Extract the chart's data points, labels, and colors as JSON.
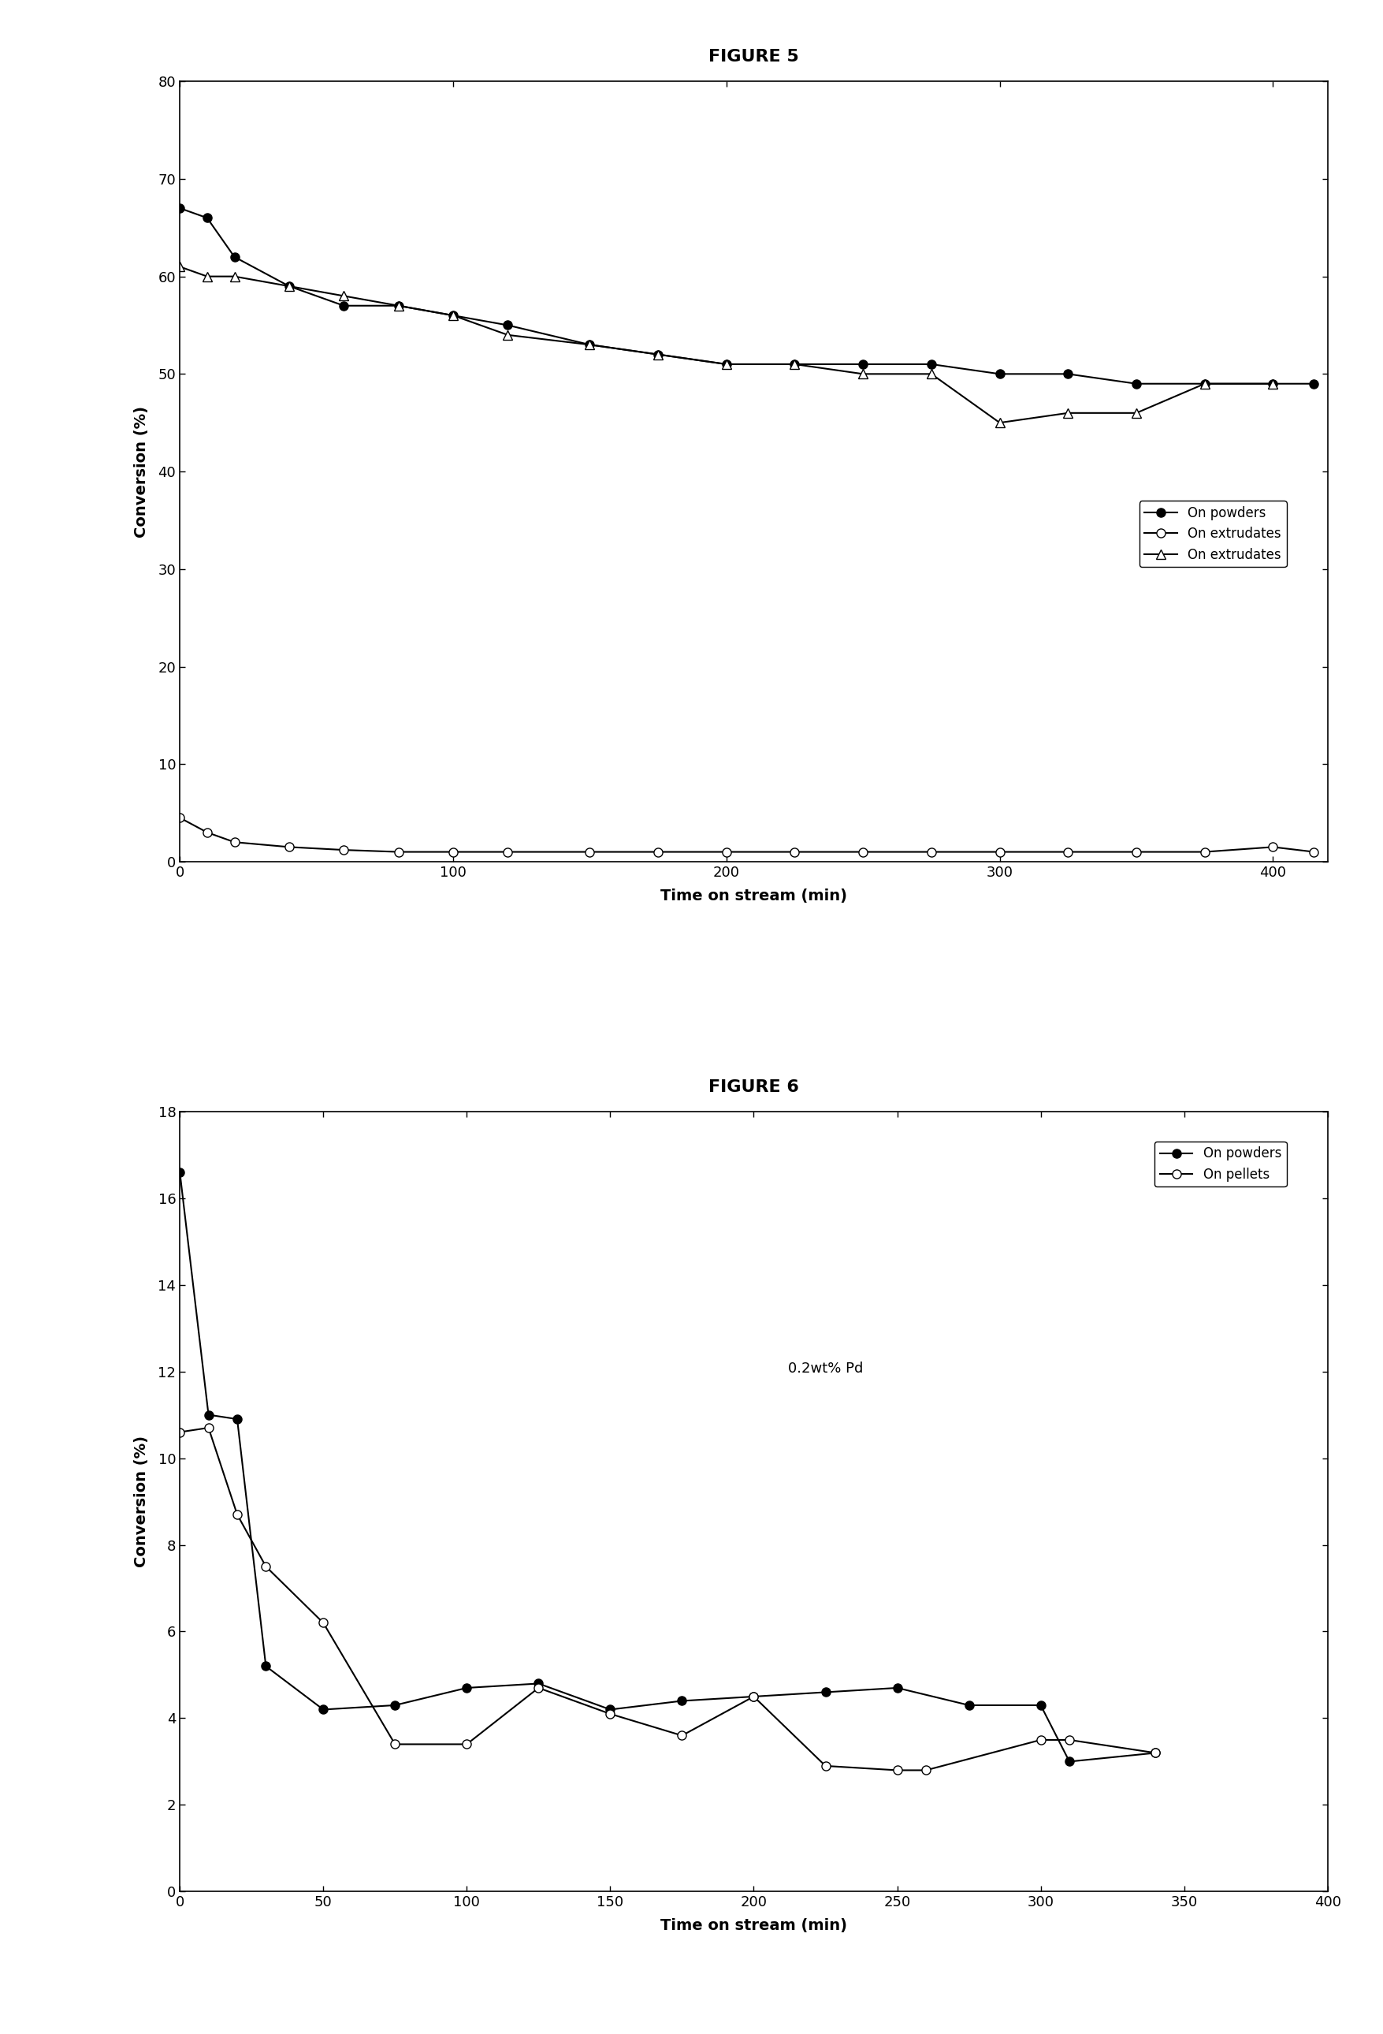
{
  "fig5": {
    "powders_x": [
      0,
      10,
      20,
      40,
      60,
      80,
      100,
      120,
      150,
      175,
      200,
      225,
      250,
      275,
      300,
      325,
      350,
      375,
      400,
      415
    ],
    "powders_y": [
      67,
      66,
      62,
      59,
      57,
      57,
      56,
      55,
      53,
      52,
      51,
      51,
      51,
      51,
      50,
      50,
      49,
      49,
      49,
      49
    ],
    "extrudates_open_x": [
      0,
      10,
      20,
      40,
      60,
      80,
      100,
      120,
      150,
      175,
      200,
      225,
      250,
      275,
      300,
      325,
      350,
      375,
      400,
      415
    ],
    "extrudates_open_y": [
      4.5,
      3.0,
      2.0,
      1.5,
      1.2,
      1.0,
      1.0,
      1.0,
      1.0,
      1.0,
      1.0,
      1.0,
      1.0,
      1.0,
      1.0,
      1.0,
      1.0,
      1.0,
      1.5,
      1.0
    ],
    "extrudates_tri_x": [
      0,
      10,
      20,
      40,
      60,
      80,
      100,
      120,
      150,
      175,
      200,
      225,
      250,
      275,
      300,
      325,
      350,
      375,
      400
    ],
    "extrudates_tri_y": [
      61,
      60,
      60,
      59,
      58,
      57,
      56,
      54,
      53,
      52,
      51,
      51,
      50,
      50,
      45,
      46,
      46,
      49,
      49
    ],
    "xlabel": "Time on stream (min)",
    "ylabel": "Conversion (%)",
    "xlim": [
      0,
      420
    ],
    "ylim": [
      0,
      80
    ],
    "xticks": [
      0,
      100,
      200,
      300,
      400
    ],
    "yticks": [
      0,
      10,
      20,
      30,
      40,
      50,
      60,
      70,
      80
    ],
    "legend_labels": [
      "On powders",
      "On extrudates",
      "On extrudates"
    ],
    "figure_label": "FIGURE 5"
  },
  "fig6": {
    "powders_x": [
      0,
      10,
      20,
      30,
      50,
      75,
      100,
      125,
      150,
      175,
      200,
      225,
      250,
      275,
      300,
      310,
      340
    ],
    "powders_y": [
      16.6,
      11.0,
      10.9,
      5.2,
      4.2,
      4.3,
      4.7,
      4.8,
      4.2,
      4.4,
      4.5,
      4.6,
      4.7,
      4.3,
      4.3,
      3.0,
      3.2
    ],
    "pellets_x": [
      0,
      10,
      20,
      30,
      50,
      75,
      100,
      125,
      150,
      175,
      200,
      225,
      250,
      260,
      300,
      310,
      340
    ],
    "pellets_y": [
      10.6,
      10.7,
      8.7,
      7.5,
      6.2,
      3.4,
      3.4,
      4.7,
      4.1,
      3.6,
      4.5,
      2.9,
      2.8,
      2.8,
      3.5,
      3.5,
      3.2
    ],
    "xlabel": "Time on stream (min)",
    "ylabel": "Conversion (%)",
    "xlim": [
      0,
      400
    ],
    "ylim": [
      0.0,
      18.0
    ],
    "xticks": [
      0,
      50,
      100,
      150,
      200,
      250,
      300,
      350,
      400
    ],
    "yticks": [
      0.0,
      2.0,
      4.0,
      6.0,
      8.0,
      10.0,
      12.0,
      14.0,
      16.0,
      18.0
    ],
    "legend_labels": [
      "On powders",
      "On pellets"
    ],
    "annotation": "0.2wt% Pd",
    "figure_label": "FIGURE 6"
  },
  "bg_color": "#ffffff"
}
